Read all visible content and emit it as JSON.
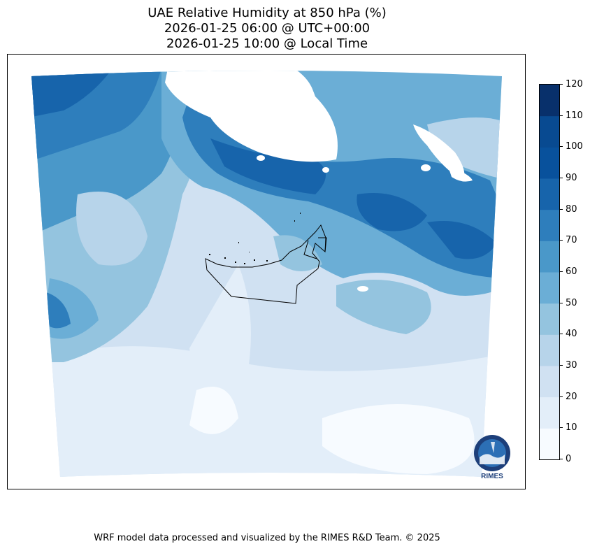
{
  "title": {
    "line1": "UAE Relative Humidity at 850 hPa (%)",
    "line2": "2026-01-25 06:00 @ UTC+00:00",
    "line3": "2026-01-25 10:00 @ Local Time"
  },
  "colorbar": {
    "ticks": [
      "0",
      "10",
      "20",
      "30",
      "40",
      "50",
      "60",
      "70",
      "80",
      "90",
      "100",
      "110",
      "120"
    ],
    "colors": [
      "#f7fbff",
      "#e3eef9",
      "#d0e1f2",
      "#b7d4ea",
      "#94c4df",
      "#6baed6",
      "#4a98c9",
      "#2e7ebc",
      "#1764ab",
      "#08519c",
      "#084a91",
      "#08306b"
    ]
  },
  "logo": {
    "text": "RIMES"
  },
  "footer": "WRF model data processed and visualized by the RIMES R&D Team. © 2025"
}
